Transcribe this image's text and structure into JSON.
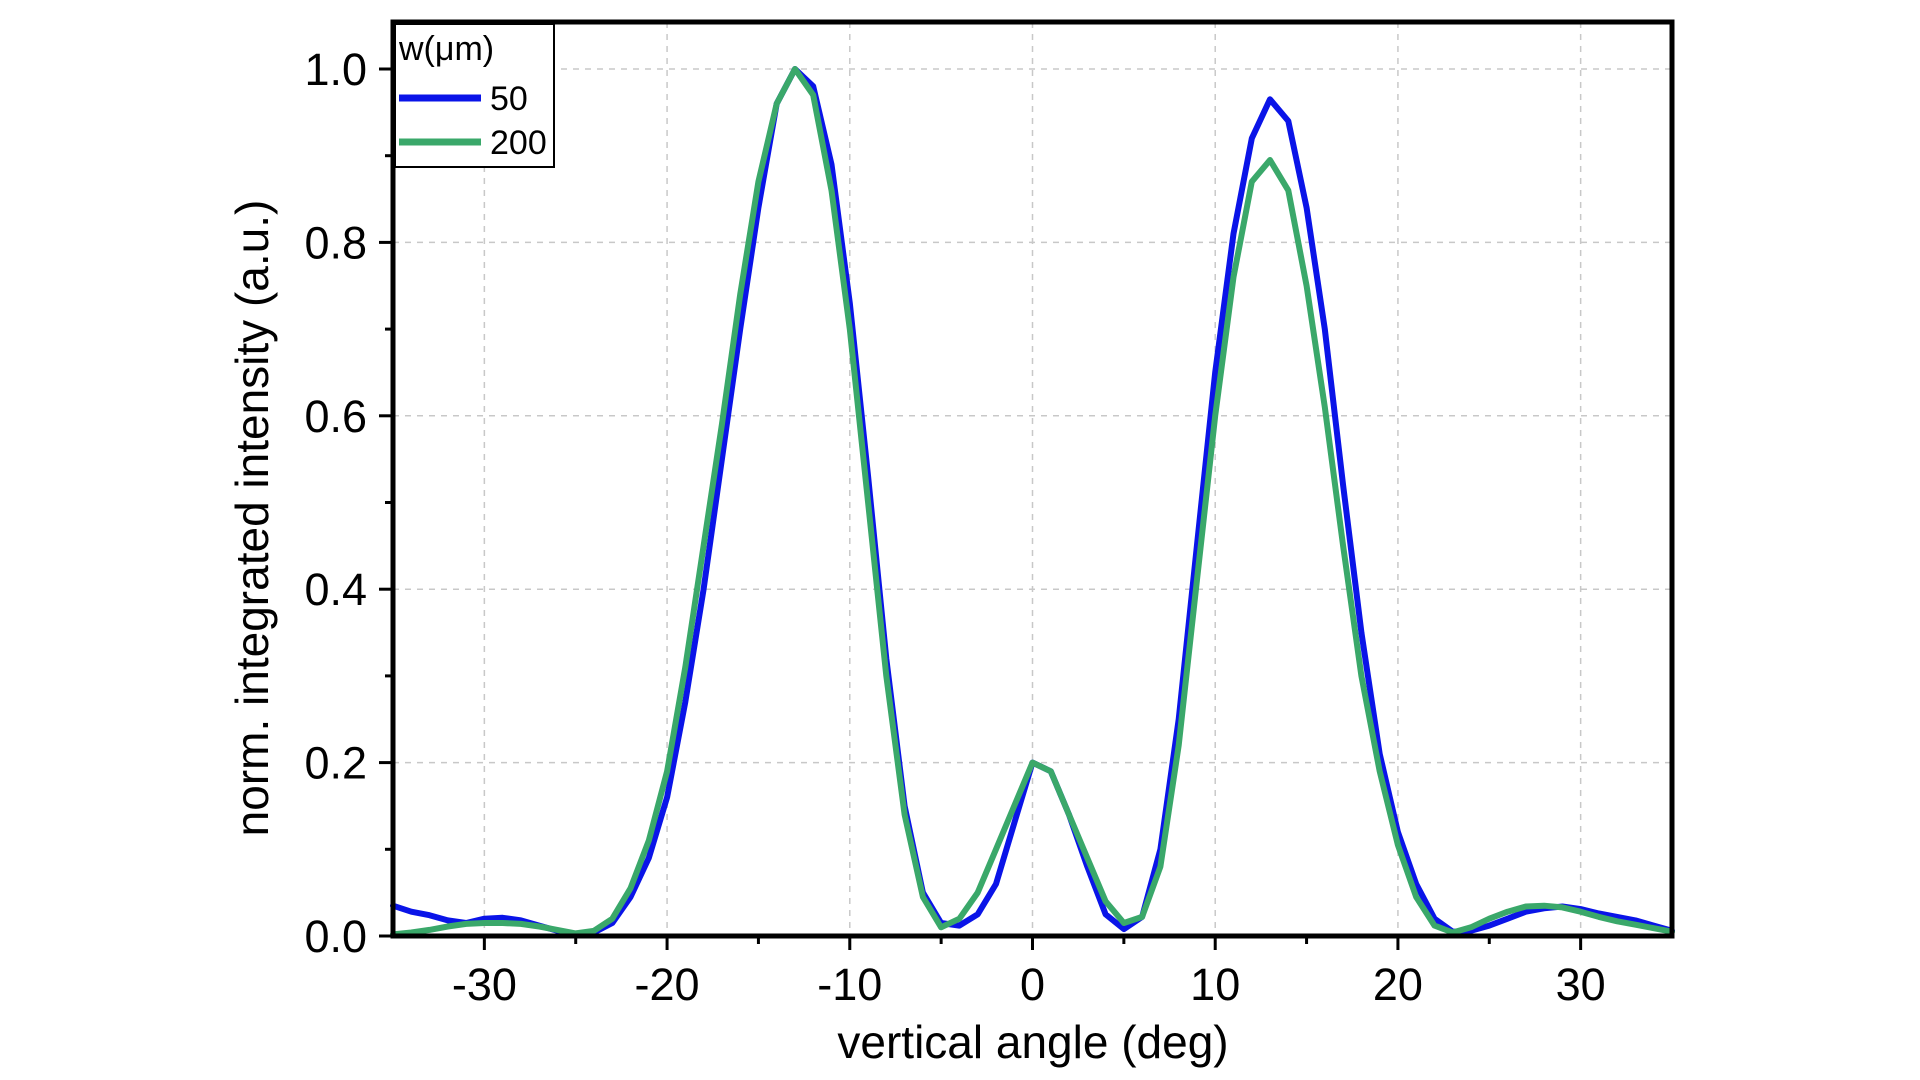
{
  "chart_data": {
    "type": "line",
    "title": "",
    "xlabel": "vertical angle (deg)",
    "ylabel": "norm. integrated intensity (a.u.)",
    "xlim": [
      -35,
      35
    ],
    "ylim": [
      0,
      1.0
    ],
    "xticks": [
      "-30",
      "-20",
      "-10",
      "0",
      "10",
      "20",
      "30"
    ],
    "yticks": [
      "0.0",
      "0.2",
      "0.4",
      "0.6",
      "0.8",
      "1.0"
    ],
    "grid": true,
    "legend": {
      "title": "w(μm)",
      "placement": "top-left"
    },
    "x": [
      -35,
      -34,
      -33,
      -32,
      -31,
      -30,
      -29,
      -28,
      -27,
      -26,
      -25,
      -24,
      -23,
      -22,
      -21,
      -20,
      -19,
      -18,
      -17,
      -16,
      -15,
      -14,
      -13,
      -12,
      -11,
      -10,
      -9,
      -8,
      -7,
      -6,
      -5,
      -4,
      -3,
      -2,
      -1,
      0,
      1,
      2,
      3,
      4,
      5,
      6,
      7,
      8,
      9,
      10,
      11,
      12,
      13,
      14,
      15,
      16,
      17,
      18,
      19,
      20,
      21,
      22,
      23,
      24,
      25,
      26,
      27,
      28,
      29,
      30,
      31,
      32,
      33,
      34,
      35
    ],
    "series": [
      {
        "name": "50",
        "color": "#0a14e8",
        "values": [
          0.035,
          0.028,
          0.024,
          0.018,
          0.015,
          0.02,
          0.021,
          0.018,
          0.012,
          0.006,
          0.002,
          0.004,
          0.015,
          0.045,
          0.09,
          0.16,
          0.27,
          0.4,
          0.55,
          0.7,
          0.84,
          0.96,
          1.0,
          0.98,
          0.89,
          0.73,
          0.53,
          0.32,
          0.15,
          0.05,
          0.015,
          0.012,
          0.025,
          0.06,
          0.13,
          0.2,
          0.19,
          0.14,
          0.08,
          0.025,
          0.008,
          0.022,
          0.1,
          0.25,
          0.45,
          0.65,
          0.81,
          0.92,
          0.965,
          0.94,
          0.84,
          0.7,
          0.52,
          0.35,
          0.21,
          0.12,
          0.06,
          0.02,
          0.005,
          0.006,
          0.012,
          0.02,
          0.028,
          0.032,
          0.034,
          0.031,
          0.026,
          0.022,
          0.018,
          0.012,
          0.006
        ]
      },
      {
        "name": "200",
        "color": "#3aa86a",
        "values": [
          0.002,
          0.004,
          0.007,
          0.011,
          0.014,
          0.015,
          0.015,
          0.014,
          0.011,
          0.007,
          0.003,
          0.006,
          0.02,
          0.055,
          0.11,
          0.19,
          0.31,
          0.45,
          0.59,
          0.74,
          0.87,
          0.96,
          1.0,
          0.97,
          0.86,
          0.7,
          0.5,
          0.3,
          0.14,
          0.045,
          0.01,
          0.02,
          0.05,
          0.1,
          0.15,
          0.2,
          0.19,
          0.14,
          0.09,
          0.04,
          0.015,
          0.022,
          0.08,
          0.22,
          0.41,
          0.6,
          0.76,
          0.87,
          0.895,
          0.86,
          0.75,
          0.61,
          0.45,
          0.3,
          0.19,
          0.105,
          0.045,
          0.012,
          0.004,
          0.01,
          0.02,
          0.028,
          0.034,
          0.035,
          0.033,
          0.028,
          0.022,
          0.017,
          0.013,
          0.009,
          0.005
        ]
      }
    ]
  }
}
